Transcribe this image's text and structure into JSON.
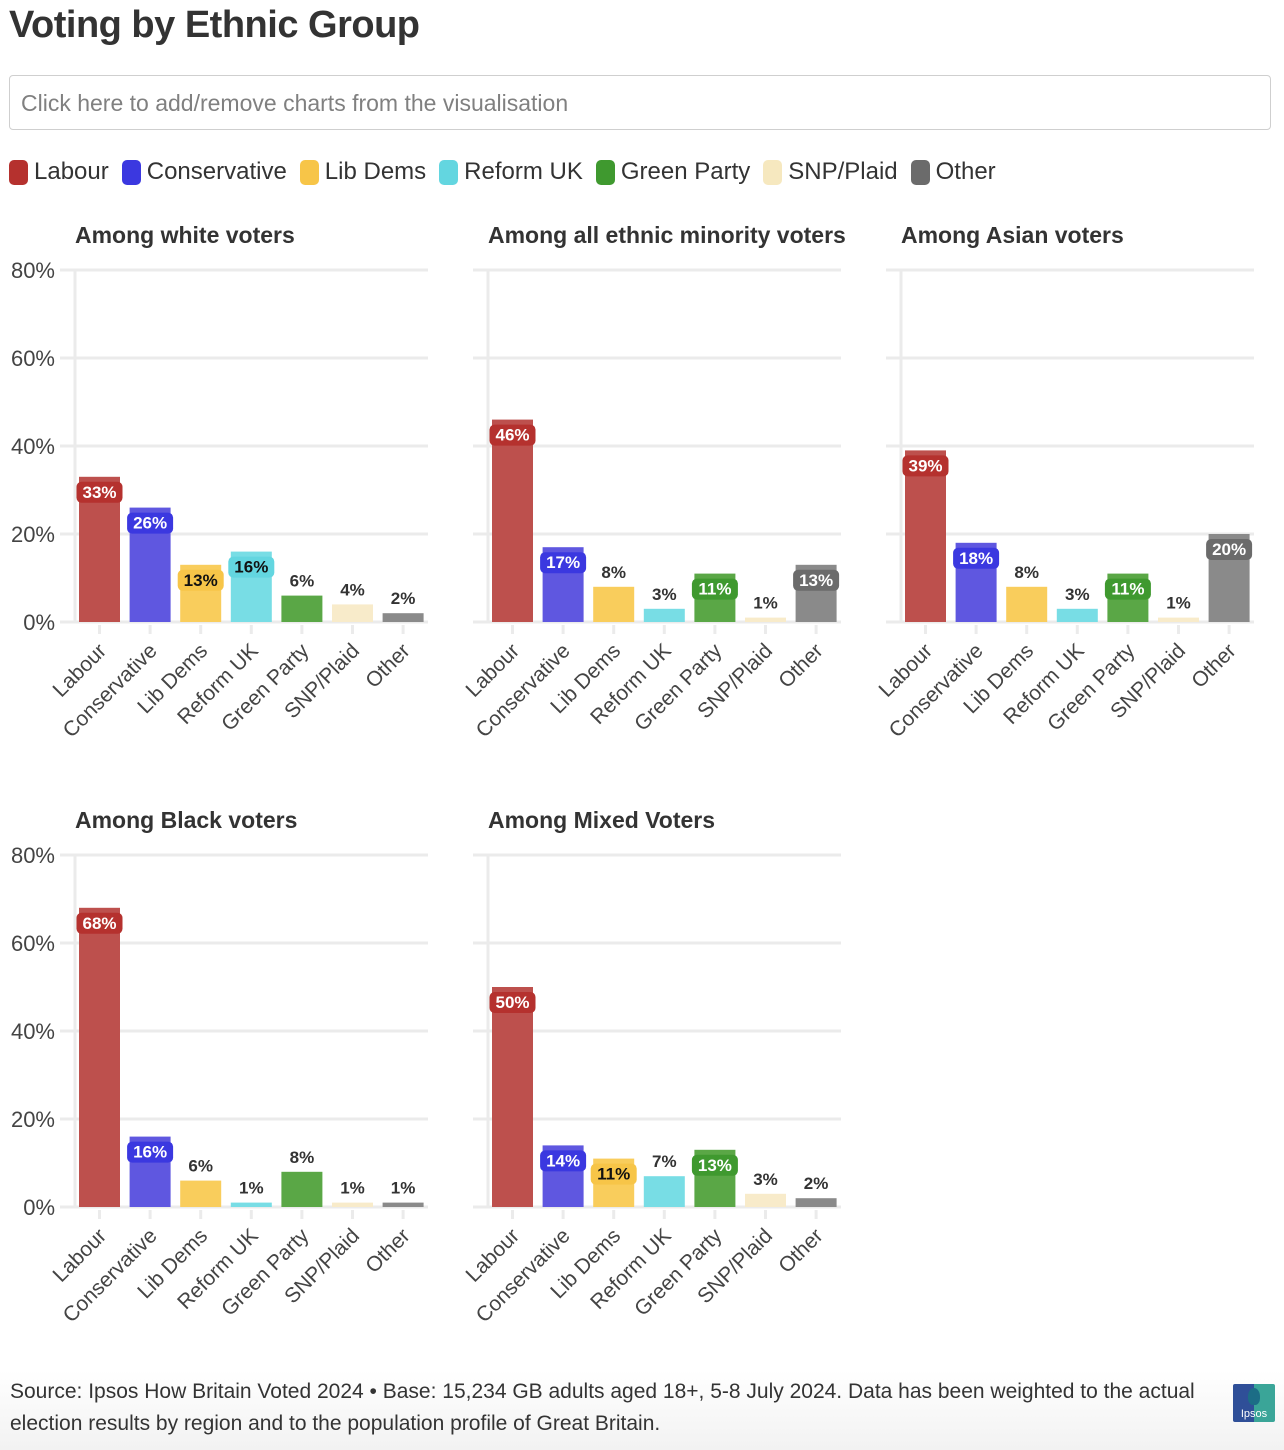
{
  "header": {
    "title": "Voting by Ethnic Group",
    "selector_placeholder": "Click here to add/remove charts from the visualisation"
  },
  "legend": [
    {
      "label": "Labour",
      "color": "#b5312e"
    },
    {
      "label": "Conservative",
      "color": "#3b38e0"
    },
    {
      "label": "Lib Dems",
      "color": "#f7c548"
    },
    {
      "label": "Reform UK",
      "color": "#63d6e0"
    },
    {
      "label": "Green Party",
      "color": "#3f992f"
    },
    {
      "label": "SNP/Plaid",
      "color": "#f6e8bf"
    },
    {
      "label": "Other",
      "color": "#6b6b6b"
    }
  ],
  "chart_data": [
    {
      "type": "bar",
      "title": "Among white voters",
      "categories": [
        "Labour",
        "Conservative",
        "Lib Dems",
        "Reform UK",
        "Green Party",
        "SNP/Plaid",
        "Other"
      ],
      "values": [
        33,
        26,
        13,
        16,
        6,
        4,
        2
      ],
      "value_labels": [
        "33%",
        "26%",
        "13%",
        "16%",
        "6%",
        "4%",
        "2%"
      ],
      "yticks": [
        "0%",
        "20%",
        "40%",
        "60%",
        "80%"
      ],
      "ylim": [
        0,
        80
      ],
      "xlabel": "",
      "ylabel": "",
      "grid": true
    },
    {
      "type": "bar",
      "title": "Among all ethnic minority voters",
      "categories": [
        "Labour",
        "Conservative",
        "Lib Dems",
        "Reform UK",
        "Green Party",
        "SNP/Plaid",
        "Other"
      ],
      "values": [
        46,
        17,
        8,
        3,
        11,
        1,
        13
      ],
      "value_labels": [
        "46%",
        "17%",
        "8%",
        "3%",
        "11%",
        "1%",
        "13%"
      ],
      "yticks": [],
      "ylim": [
        0,
        80
      ],
      "xlabel": "",
      "ylabel": "",
      "grid": true
    },
    {
      "type": "bar",
      "title": "Among Asian voters",
      "categories": [
        "Labour",
        "Conservative",
        "Lib Dems",
        "Reform UK",
        "Green Party",
        "SNP/Plaid",
        "Other"
      ],
      "values": [
        39,
        18,
        8,
        3,
        11,
        1,
        20
      ],
      "value_labels": [
        "39%",
        "18%",
        "8%",
        "3%",
        "11%",
        "1%",
        "20%"
      ],
      "yticks": [],
      "ylim": [
        0,
        80
      ],
      "xlabel": "",
      "ylabel": "",
      "grid": true
    },
    {
      "type": "bar",
      "title": "Among Black voters",
      "categories": [
        "Labour",
        "Conservative",
        "Lib Dems",
        "Reform UK",
        "Green Party",
        "SNP/Plaid",
        "Other"
      ],
      "values": [
        68,
        16,
        6,
        1,
        8,
        1,
        1
      ],
      "value_labels": [
        "68%",
        "16%",
        "6%",
        "1%",
        "8%",
        "1%",
        "1%"
      ],
      "yticks": [
        "0%",
        "20%",
        "40%",
        "60%",
        "80%"
      ],
      "ylim": [
        0,
        80
      ],
      "xlabel": "",
      "ylabel": "",
      "grid": true
    },
    {
      "type": "bar",
      "title": "Among Mixed Voters",
      "categories": [
        "Labour",
        "Conservative",
        "Lib Dems",
        "Reform UK",
        "Green Party",
        "SNP/Plaid",
        "Other"
      ],
      "values": [
        50,
        14,
        11,
        7,
        13,
        3,
        2
      ],
      "value_labels": [
        "50%",
        "14%",
        "11%",
        "7%",
        "13%",
        "3%",
        "2%"
      ],
      "yticks": [],
      "ylim": [
        0,
        80
      ],
      "xlabel": "",
      "ylabel": "",
      "grid": true
    }
  ],
  "footer": {
    "source_text": "Source: Ipsos How Britain Voted 2024 • Base: 15,234 GB adults aged 18+, 5-8 July 2024. Data has been weighted to the actual election results by region and to the population profile of Great Britain.",
    "logo_text": "Ipsos"
  }
}
